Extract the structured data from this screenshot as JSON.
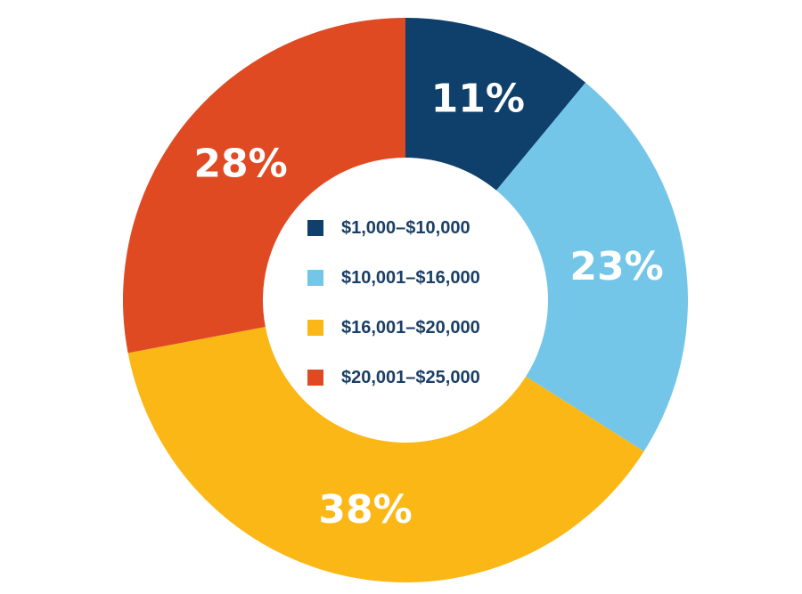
{
  "chart_data": {
    "type": "pie",
    "style": "donut",
    "categories": [
      "$1,000–$10,000",
      "$10,001–$16,000",
      "$16,001–$20,000",
      "$20,001–$25,000"
    ],
    "values": [
      11,
      23,
      38,
      28
    ],
    "value_labels": [
      "11%",
      "23%",
      "38%",
      "28%"
    ],
    "colors": [
      "#0f3f6b",
      "#74c6e8",
      "#fbb716",
      "#e04a23"
    ],
    "legend_placement": "center"
  }
}
